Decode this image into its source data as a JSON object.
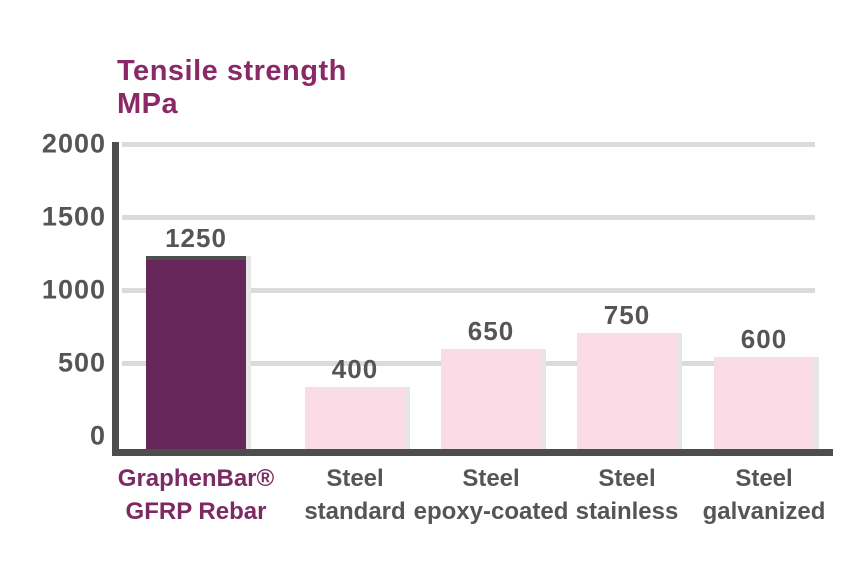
{
  "title": {
    "line1": "Tensile strength",
    "line2": "MPa"
  },
  "colors": {
    "title_text": "#8B2968",
    "highlight_bar": "#67265A",
    "default_bar": "#F9DCE6",
    "bar_side_shadow": "#E6E6E6",
    "axis": "#4D4D4D",
    "gridline": "#DBDBDB",
    "tick_label": "#555555",
    "value_label": "#555555",
    "highlight_category_label": "#7D2A63",
    "category_label": "#555555"
  },
  "chart_data": {
    "type": "bar",
    "title": "Tensile strength",
    "ylabel": "MPa",
    "xlabel": "",
    "categories": [
      [
        "GraphenBar®",
        "GFRP Rebar"
      ],
      [
        "Steel",
        "standard"
      ],
      [
        "Steel",
        "epoxy-coated"
      ],
      [
        "Steel",
        "stainless"
      ],
      [
        "Steel",
        "galvanized"
      ]
    ],
    "values": [
      1250,
      400,
      650,
      750,
      600
    ],
    "value_labels": [
      "1250",
      "400",
      "650",
      "750",
      "600"
    ],
    "ylim": [
      0,
      2000
    ],
    "yticks": [
      0,
      500,
      1000,
      1500,
      2000
    ],
    "grid": "horizontal",
    "legend": "none",
    "highlight_index": 0
  }
}
